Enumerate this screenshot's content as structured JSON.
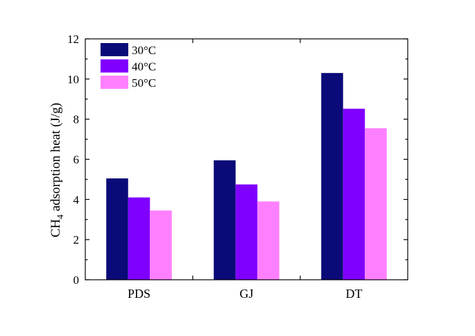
{
  "chart_data": {
    "type": "bar",
    "categories": [
      "PDS",
      "GJ",
      "DT"
    ],
    "series": [
      {
        "name": "30°C",
        "color": "#0a0a78",
        "values": [
          5.05,
          5.95,
          10.3
        ]
      },
      {
        "name": "40°C",
        "color": "#8000ff",
        "values": [
          4.1,
          4.75,
          8.52
        ]
      },
      {
        "name": "50°C",
        "color": "#ff80ff",
        "values": [
          3.45,
          3.9,
          7.55
        ]
      }
    ],
    "ylabel": {
      "prefix": "CH",
      "subscript": "4",
      "suffix": " adsorption heat (J/g)"
    },
    "xlabel": "",
    "ylim": [
      0,
      12
    ],
    "yticks": [
      0,
      2,
      4,
      6,
      8,
      10,
      12
    ],
    "grid": false,
    "legend_position": "top-left"
  }
}
